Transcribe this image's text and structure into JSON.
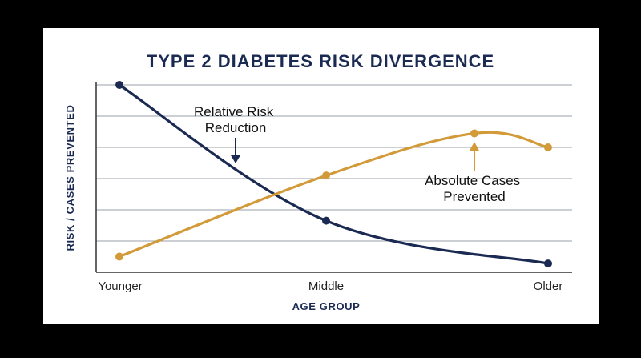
{
  "colors": {
    "background": "#000000",
    "card": "#ffffff",
    "navy": "#1b2a52",
    "gold": "#d29a38",
    "grid": "#9aa0ab",
    "axis": "#333333"
  },
  "chart_data": {
    "type": "line",
    "title": "TYPE 2 DIABETES RISK DIVERGENCE",
    "xlabel": "AGE GROUP",
    "ylabel": "RISK / CASES PREVENTED",
    "categories": [
      "Younger",
      "Middle",
      "Older"
    ],
    "x": [
      0,
      0.47,
      0.8,
      1.0
    ],
    "ylim": [
      0,
      6
    ],
    "grid": true,
    "series": [
      {
        "name": "Relative Risk Reduction",
        "color": "#1b2a52",
        "points": [
          {
            "x": 0,
            "y": 6.0
          },
          {
            "x": 0.47,
            "y": 1.65
          },
          {
            "x": 1.0,
            "y": 0.28
          }
        ]
      },
      {
        "name": "Absolute Cases Prevented",
        "color": "#d29a38",
        "points": [
          {
            "x": 0,
            "y": 0.5
          },
          {
            "x": 0.47,
            "y": 3.1
          },
          {
            "x": 0.8,
            "y": 4.45
          },
          {
            "x": 1.0,
            "y": 4.0
          }
        ]
      }
    ],
    "annotations": [
      {
        "id": "rrr",
        "lines": [
          "Relative Risk",
          "Reduction"
        ]
      },
      {
        "id": "acp",
        "lines": [
          "Absolute Cases",
          "Prevented"
        ]
      }
    ]
  }
}
